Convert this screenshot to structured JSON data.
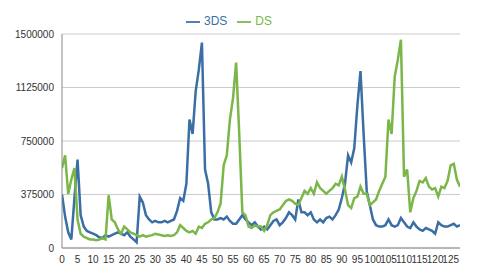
{
  "chart_data": {
    "type": "line",
    "x": [
      0,
      1,
      2,
      3,
      4,
      5,
      6,
      7,
      8,
      9,
      10,
      11,
      12,
      13,
      14,
      15,
      16,
      17,
      18,
      19,
      20,
      21,
      22,
      23,
      24,
      25,
      26,
      27,
      28,
      29,
      30,
      31,
      32,
      33,
      34,
      35,
      36,
      37,
      38,
      39,
      40,
      41,
      42,
      43,
      44,
      45,
      46,
      47,
      48,
      49,
      50,
      51,
      52,
      53,
      54,
      55,
      56,
      57,
      58,
      59,
      60,
      61,
      62,
      63,
      64,
      65,
      66,
      67,
      68,
      69,
      70,
      71,
      72,
      73,
      74,
      75,
      76,
      77,
      78,
      79,
      80,
      81,
      82,
      83,
      84,
      85,
      86,
      87,
      88,
      89,
      90,
      91,
      92,
      93,
      94,
      95,
      96,
      97,
      98,
      99,
      100,
      101,
      102,
      103,
      104,
      105,
      106,
      107,
      108,
      109,
      110,
      111,
      112,
      113,
      114,
      115,
      116,
      117,
      118,
      119,
      120,
      121,
      122,
      123,
      124,
      125,
      126,
      127,
      128
    ],
    "series": [
      {
        "name": "3DS",
        "color": "#3a6ea5",
        "values": [
          375000,
          220000,
          110000,
          60000,
          350000,
          620000,
          230000,
          150000,
          120000,
          110000,
          100000,
          90000,
          75000,
          70000,
          90000,
          80000,
          90000,
          100000,
          110000,
          100000,
          90000,
          110000,
          80000,
          60000,
          40000,
          360000,
          320000,
          230000,
          200000,
          180000,
          190000,
          180000,
          180000,
          190000,
          180000,
          190000,
          200000,
          260000,
          350000,
          330000,
          450000,
          900000,
          800000,
          1100000,
          1250000,
          1440000,
          550000,
          450000,
          250000,
          200000,
          200000,
          210000,
          200000,
          220000,
          190000,
          170000,
          170000,
          200000,
          230000,
          200000,
          180000,
          160000,
          180000,
          150000,
          130000,
          150000,
          130000,
          160000,
          190000,
          200000,
          160000,
          180000,
          210000,
          250000,
          230000,
          200000,
          340000,
          250000,
          250000,
          230000,
          250000,
          200000,
          180000,
          200000,
          180000,
          210000,
          220000,
          200000,
          230000,
          270000,
          350000,
          450000,
          650000,
          600000,
          700000,
          1000000,
          1240000,
          800000,
          400000,
          300000,
          200000,
          160000,
          150000,
          150000,
          160000,
          200000,
          160000,
          150000,
          160000,
          210000,
          180000,
          150000,
          140000,
          180000,
          150000,
          130000,
          120000,
          140000,
          130000,
          120000,
          100000,
          180000,
          160000,
          150000,
          150000,
          160000,
          170000,
          150000,
          160000
        ]
      },
      {
        "name": "DS",
        "color": "#7ab648",
        "values": [
          560000,
          650000,
          380000,
          480000,
          560000,
          200000,
          100000,
          80000,
          70000,
          60000,
          60000,
          55000,
          60000,
          70000,
          60000,
          370000,
          200000,
          180000,
          130000,
          100000,
          150000,
          130000,
          110000,
          100000,
          90000,
          80000,
          90000,
          80000,
          85000,
          90000,
          100000,
          95000,
          90000,
          85000,
          90000,
          85000,
          90000,
          110000,
          160000,
          140000,
          120000,
          110000,
          120000,
          100000,
          150000,
          140000,
          170000,
          180000,
          200000,
          210000,
          250000,
          310000,
          580000,
          650000,
          900000,
          1050000,
          1300000,
          800000,
          250000,
          230000,
          150000,
          140000,
          160000,
          150000,
          150000,
          120000,
          160000,
          230000,
          250000,
          260000,
          270000,
          300000,
          330000,
          340000,
          330000,
          310000,
          300000,
          350000,
          400000,
          380000,
          420000,
          380000,
          460000,
          420000,
          400000,
          380000,
          400000,
          420000,
          450000,
          440000,
          500000,
          410000,
          300000,
          280000,
          350000,
          360000,
          430000,
          380000,
          380000,
          300000,
          320000,
          340000,
          400000,
          450000,
          500000,
          900000,
          800000,
          1200000,
          1320000,
          1460000,
          500000,
          550000,
          250000,
          350000,
          400000,
          470000,
          460000,
          490000,
          430000,
          410000,
          420000,
          360000,
          430000,
          420000,
          470000,
          580000,
          590000,
          480000,
          430000
        ]
      }
    ],
    "xlim": [
      0,
      128
    ],
    "xticks": [
      0,
      5,
      10,
      15,
      20,
      25,
      30,
      35,
      40,
      45,
      50,
      55,
      60,
      65,
      70,
      75,
      80,
      85,
      90,
      95,
      100,
      105,
      110,
      115,
      120,
      125
    ],
    "ylim": [
      0,
      1500000
    ],
    "yticks": [
      0,
      375000,
      750000,
      1125000,
      1500000
    ],
    "grid": true,
    "legend": "top"
  }
}
